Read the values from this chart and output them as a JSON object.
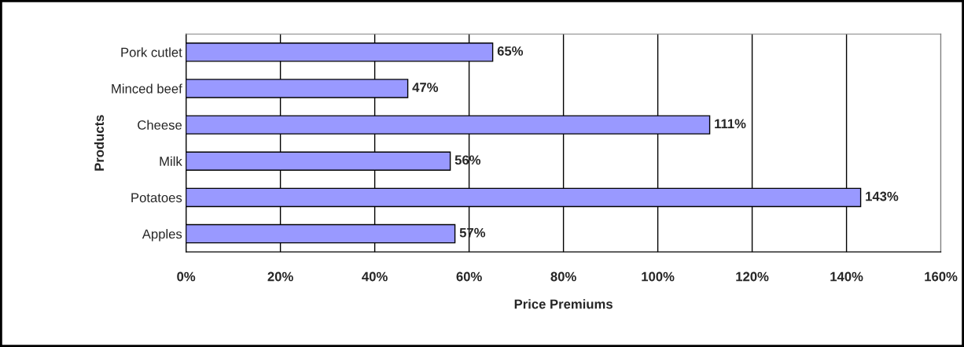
{
  "chart_data": {
    "type": "bar",
    "orientation": "horizontal",
    "xlabel": "Price Premiums",
    "ylabel": "Products",
    "categories": [
      "Pork cutlet",
      "Minced beef",
      "Cheese",
      "Milk",
      "Potatoes",
      "Apples"
    ],
    "values": [
      65,
      47,
      111,
      56,
      143,
      57
    ],
    "value_labels": [
      "65%",
      "47%",
      "111%",
      "56%",
      "143%",
      "57%"
    ],
    "color": "#9999ff",
    "xlim": [
      0,
      160
    ],
    "xticks": [
      {
        "value": 0,
        "label": "0%"
      },
      {
        "value": 20,
        "label": "20%"
      },
      {
        "value": 40,
        "label": "40%"
      },
      {
        "value": 60,
        "label": "60%"
      },
      {
        "value": 80,
        "label": "80%"
      },
      {
        "value": 100,
        "label": "100%"
      },
      {
        "value": 120,
        "label": "120%"
      },
      {
        "value": 140,
        "label": "140%"
      },
      {
        "value": 160,
        "label": "160%"
      }
    ],
    "grid": "x"
  }
}
